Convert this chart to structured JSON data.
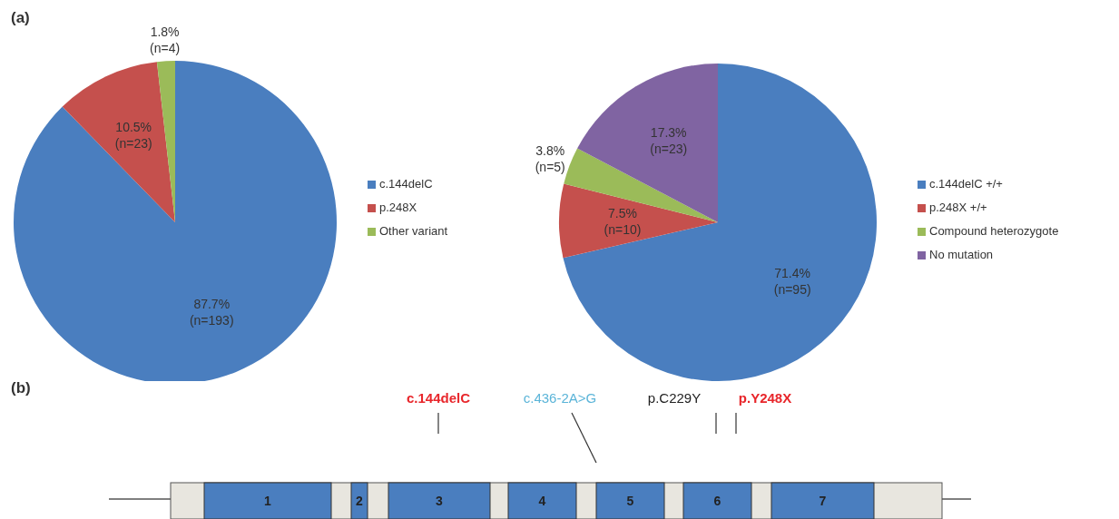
{
  "chart_data": [
    {
      "type": "pie",
      "title": "(a)",
      "categories": [
        "c.144delC",
        "p.248X",
        "Other variant"
      ],
      "values": [
        87.7,
        10.5,
        1.8
      ],
      "colors": [
        "#4a7ebf",
        "#c5504d",
        "#9bbb59"
      ],
      "value_labels": [
        "87.7%\n(n=193)",
        "10.5%\n(n=23)",
        "1.8%\n(n=4)"
      ],
      "legend": "right"
    },
    {
      "type": "pie",
      "categories": [
        "c.144delC +/+",
        "p.248X +/+",
        "Compound heterozygote",
        "No mutation"
      ],
      "values": [
        71.4,
        7.5,
        3.8,
        17.3
      ],
      "colors": [
        "#4a7ebf",
        "#c5504d",
        "#9bbb59",
        "#8064a2"
      ],
      "value_labels": [
        "71.4%\n(n=95)",
        "7.5%\n(n=10)",
        "3.8%\n(n=5)",
        "17.3%\n(n=23)"
      ],
      "legend": "right"
    },
    {
      "type": "other",
      "title": "(b)",
      "annotations": [
        "c.144delC",
        "c.436-2A>G",
        "p.C229Y",
        "p.Y248X",
        "1",
        "2",
        "3",
        "4",
        "5",
        "6",
        "7"
      ],
      "colors": [
        "#e8262b",
        "#5ab4d8",
        "#222222",
        "#e8262b",
        "#222222",
        "#222222",
        "#222222",
        "#222222",
        "#222222",
        "#222222",
        "#222222"
      ]
    }
  ]
}
